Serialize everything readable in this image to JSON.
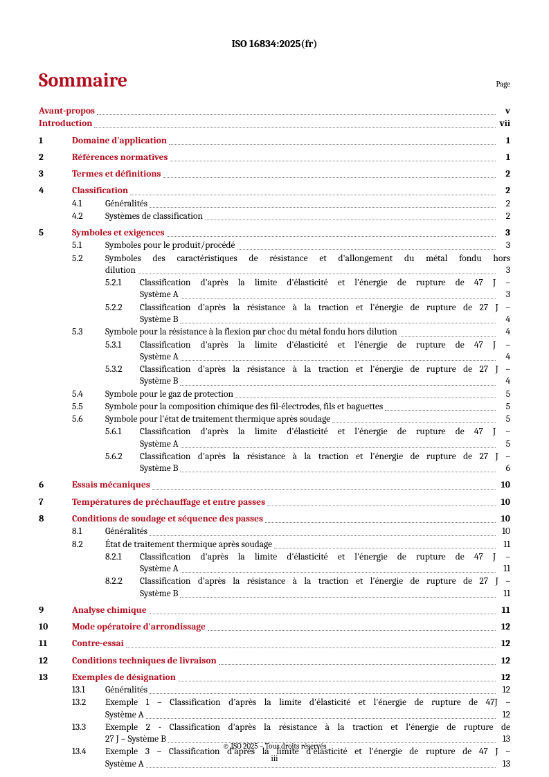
{
  "header": "ISO 16834:2025(fr)",
  "title": "Sommaire",
  "page_label": "Page",
  "footer_copyright": "© ISO 2025 – Tous droits réservés",
  "footer_page": "iii",
  "colors": {
    "accent": "#b10f20",
    "text": "#000000",
    "leader": "#7a7a7a",
    "background": "#ffffff"
  },
  "fonts": {
    "body_size": 13.5,
    "title_size": 28,
    "header_size": 15
  },
  "toc": {
    "pre": [
      {
        "title": "Avant-propos",
        "page": "v"
      },
      {
        "title": "Introduction",
        "page": "vii"
      }
    ],
    "sections": [
      {
        "num": "1",
        "title": "Domaine d'application",
        "page": "1"
      },
      {
        "num": "2",
        "title": "Références normatives",
        "page": "1"
      },
      {
        "num": "3",
        "title": "Termes et définitions",
        "page": "2"
      },
      {
        "num": "4",
        "title": "Classification",
        "page": "2",
        "subs": [
          {
            "num": "4.1",
            "title": "Généralités",
            "page": "2"
          },
          {
            "num": "4.2",
            "title": "Systèmes de classification",
            "page": "2"
          }
        ]
      },
      {
        "num": "5",
        "title": "Symboles et exigences",
        "page": "3",
        "subs": [
          {
            "num": "5.1",
            "title": "Symboles pour le produit/procédé",
            "page": "3"
          },
          {
            "num": "5.2",
            "title_wrap": [
              "Symboles des caractéristiques de résistance et d'allongement du métal fondu hors",
              "dilution"
            ],
            "page": "3",
            "subs": [
              {
                "num": "5.2.1",
                "title_wrap": [
                  "Classification d'après la limite d'élasticité et l'énergie de rupture de 47 J –",
                  "Système A"
                ],
                "page": "3"
              },
              {
                "num": "5.2.2",
                "title_wrap": [
                  "Classification d'après la résistance à la traction et l'énergie de rupture de 27 J –",
                  "Système B"
                ],
                "page": "4"
              }
            ]
          },
          {
            "num": "5.3",
            "title": "Symbole pour la résistance à la flexion par choc du métal fondu hors dilution",
            "page": "4",
            "subs": [
              {
                "num": "5.3.1",
                "title_wrap": [
                  "Classification d'après la limite d'élasticité et l'énergie de rupture de 47 J –",
                  "Système A"
                ],
                "page": "4"
              },
              {
                "num": "5.3.2",
                "title_wrap": [
                  "Classification d'après la résistance à la traction et l'énergie de rupture de 27 J –",
                  "Système B"
                ],
                "page": "4"
              }
            ]
          },
          {
            "num": "5.4",
            "title": "Symbole pour le gaz de protection",
            "page": "5"
          },
          {
            "num": "5.5",
            "title": "Symbole pour la composition chimique des fil-électrodes, fils et baguettes",
            "page": "5"
          },
          {
            "num": "5.6",
            "title": "Symbole pour l'état de traitement thermique après soudage",
            "page": "5",
            "subs": [
              {
                "num": "5.6.1",
                "title_wrap": [
                  "Classification d'après la limite d'élasticité et l'énergie de rupture de 47 J –",
                  "Système A"
                ],
                "page": "5"
              },
              {
                "num": "5.6.2",
                "title_wrap": [
                  "Classification d'après la résistance à la traction et l'énergie de rupture de 27 J –",
                  "Système B"
                ],
                "page": "6"
              }
            ]
          }
        ]
      },
      {
        "num": "6",
        "title": "Essais mécaniques",
        "page": "10"
      },
      {
        "num": "7",
        "title": "Températures de préchauffage et entre passes",
        "page": "10"
      },
      {
        "num": "8",
        "title": "Conditions de soudage et séquence des passes",
        "page": "10",
        "subs": [
          {
            "num": "8.1",
            "title": "Généralités",
            "page": "10"
          },
          {
            "num": "8.2",
            "title": "État de traitement thermique après soudage",
            "page": "11",
            "subs": [
              {
                "num": "8.2.1",
                "title_wrap": [
                  "Classification d'après la limite d'élasticité et l'énergie de rupture de 47 J –",
                  "Système A"
                ],
                "page": "11"
              },
              {
                "num": "8.2.2",
                "title_wrap": [
                  "Classification d'après la résistance à la traction et l'énergie de rupture de 27 J –",
                  "Système B"
                ],
                "page": "11"
              }
            ]
          }
        ]
      },
      {
        "num": "9",
        "title": "Analyse chimique",
        "page": "11"
      },
      {
        "num": "10",
        "title": "Mode opératoire d'arrondissage",
        "page": "12"
      },
      {
        "num": "11",
        "title": "Contre-essai",
        "page": "12"
      },
      {
        "num": "12",
        "title": "Conditions techniques de livraison",
        "page": "12"
      },
      {
        "num": "13",
        "title": "Exemples de désignation",
        "page": "12",
        "subs": [
          {
            "num": "13.1",
            "title": "Généralités",
            "page": "12"
          },
          {
            "num": "13.2",
            "title_wrap": [
              "Exemple 1 – Classification d'après la limite d'élasticité et l'énergie de rupture de 47J –",
              "Système A"
            ],
            "page": "12"
          },
          {
            "num": "13.3",
            "title_wrap": [
              "Exemple 2 - Classification d'après la résistance à la traction et l'énergie de rupture de",
              "27 J – Système B"
            ],
            "page": "13"
          },
          {
            "num": "13.4",
            "title_wrap": [
              "Exemple 3 – Classification d'après la limite d'élasticité et l'énergie de rupture de 47 J –",
              "Système A"
            ],
            "page": "13"
          }
        ]
      }
    ]
  }
}
